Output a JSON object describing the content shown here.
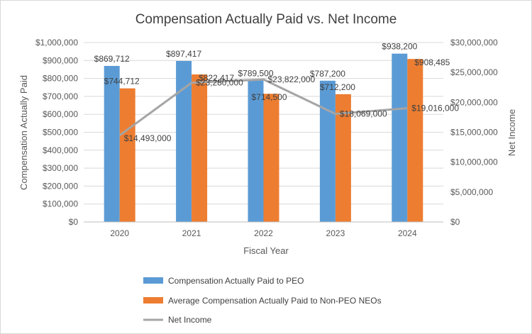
{
  "chart_data": {
    "type": "bar",
    "title": "Compensation Actually Paid vs. Net Income",
    "xlabel": "Fiscal Year",
    "ylabel": "Compensation Actually Paid",
    "y2label": "Net Income",
    "categories": [
      "2020",
      "2021",
      "2022",
      "2023",
      "2024"
    ],
    "ylim": [
      0,
      1000000
    ],
    "y2lim": [
      0,
      30000000
    ],
    "yticks": [
      "$0",
      "$100,000",
      "$200,000",
      "$300,000",
      "$400,000",
      "$500,000",
      "$600,000",
      "$700,000",
      "$800,000",
      "$900,000",
      "$1,000,000"
    ],
    "y2ticks": [
      "$0",
      "$5,000,000",
      "$10,000,000",
      "$15,000,000",
      "$20,000,000",
      "$25,000,000",
      "$30,000,000"
    ],
    "grid": true,
    "legend_position": "bottom",
    "series": [
      {
        "name": "Compensation Actually Paid to PEO",
        "type": "bar",
        "axis": "left",
        "color": "#5b9bd5",
        "values": [
          869712,
          897417,
          789500,
          787200,
          938200
        ],
        "labels": [
          "$869,712",
          "$897,417",
          "$789,500",
          "$787,200",
          "$938,200"
        ]
      },
      {
        "name": "Average Compensation Actually Paid to Non-PEO NEOs",
        "type": "bar",
        "axis": "left",
        "color": "#ed7d31",
        "values": [
          744712,
          822417,
          714500,
          712200,
          908485
        ],
        "labels": [
          "$744,712",
          "$822,417",
          "$714,500",
          "$712,200",
          "$908,485"
        ]
      },
      {
        "name": "Net Income",
        "type": "line",
        "axis": "right",
        "color": "#a5a5a5",
        "values": [
          14493000,
          23280000,
          23822000,
          18069000,
          19016000
        ],
        "labels": [
          "$14,493,000",
          "$23,280,000",
          "$23,822,000",
          "$18,069,000",
          "$19,016,000"
        ]
      }
    ]
  }
}
